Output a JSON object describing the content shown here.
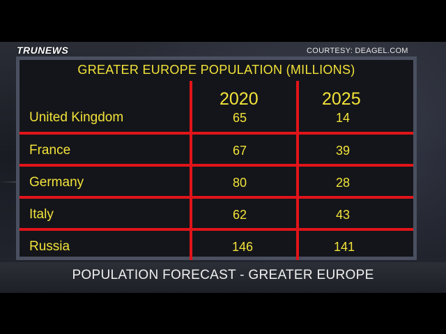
{
  "logo": {
    "part1": "TRU",
    "part2": "NEWS"
  },
  "credit": "COURTESY:  DEAGEL.COM",
  "table": {
    "title": "GREATER EUROPE POPULATION (MILLIONS)",
    "years": [
      "2020",
      "2025"
    ],
    "rows": [
      {
        "country": "United Kingdom",
        "v2020": "65",
        "v2025": "14"
      },
      {
        "country": "France",
        "v2020": "67",
        "v2025": "39"
      },
      {
        "country": "Germany",
        "v2020": "80",
        "v2025": "28"
      },
      {
        "country": "Italy",
        "v2020": "62",
        "v2025": "43"
      },
      {
        "country": "Russia",
        "v2020": "146",
        "v2025": "141"
      }
    ]
  },
  "lower_third": "POPULATION FORECAST - GREATER EUROPE",
  "colors": {
    "text": "#f2e33a",
    "grid": "#e0141a",
    "panel": "#14151a"
  }
}
